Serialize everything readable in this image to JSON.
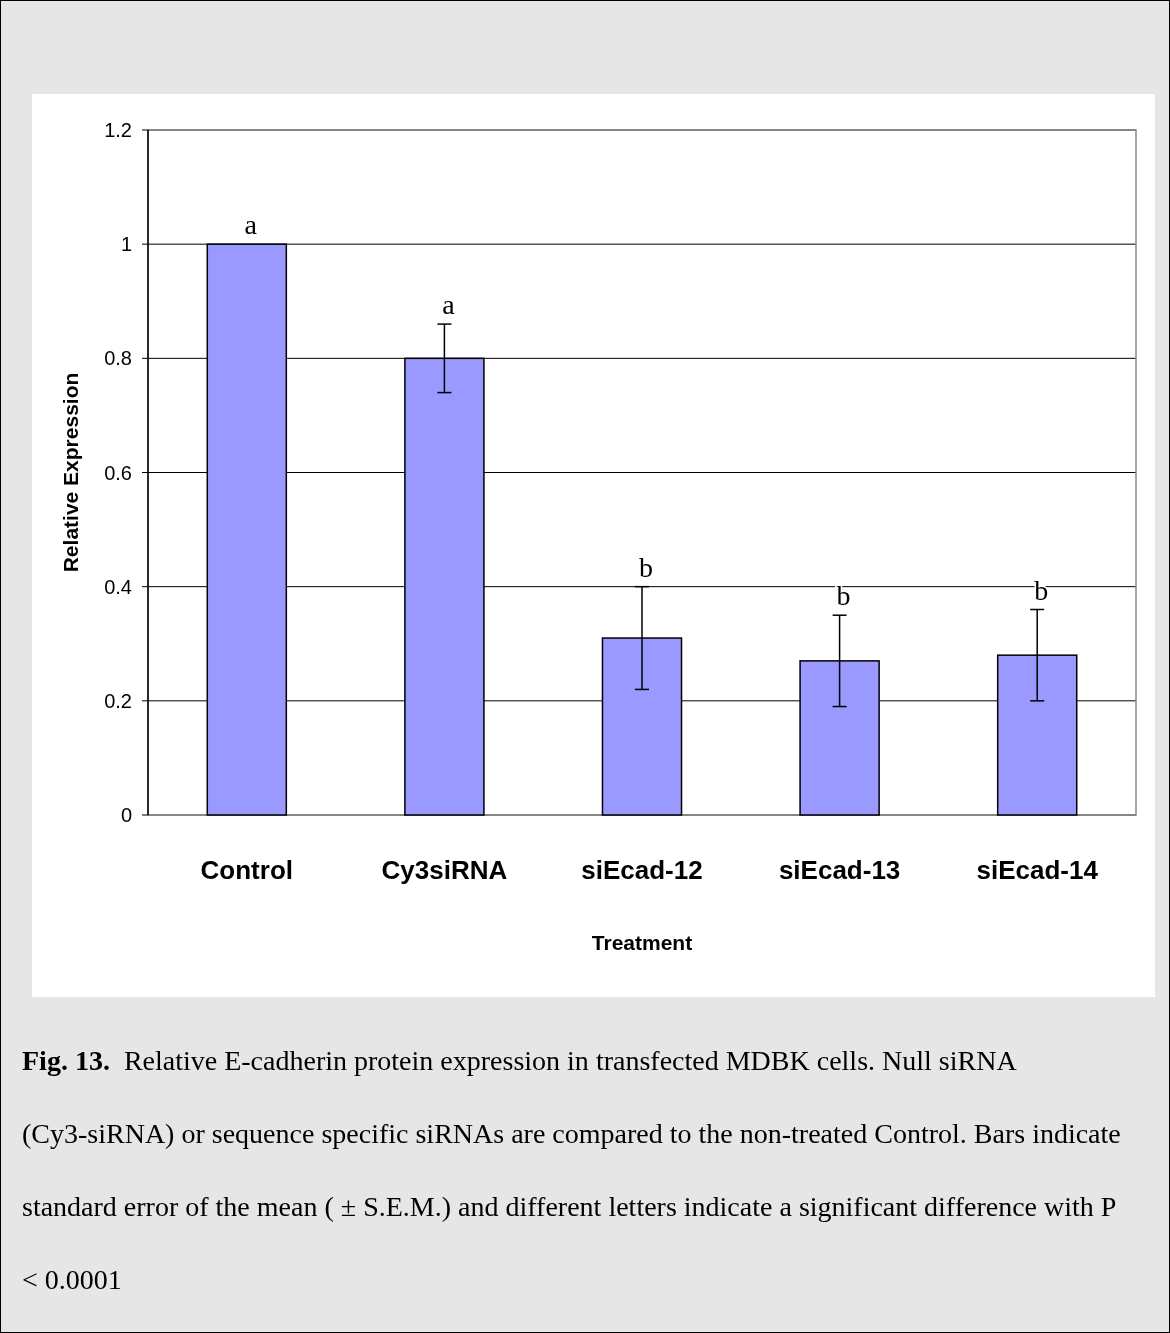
{
  "chart_data": {
    "type": "bar",
    "xlabel": "Treatment",
    "ylabel": "Relative Expression",
    "categories": [
      "Control",
      "Cy3siRNA",
      "siEcad-12",
      "siEcad-13",
      "siEcad-14"
    ],
    "values": [
      1.0,
      0.8,
      0.31,
      0.27,
      0.28
    ],
    "errors": [
      null,
      0.06,
      0.09,
      0.08,
      0.08
    ],
    "color": "#9999ff",
    "ylim": [
      0,
      1.2
    ],
    "yticks": [
      0,
      0.2,
      0.4,
      0.6,
      0.8,
      1,
      1.2
    ],
    "grid": "y",
    "annotations": [
      {
        "text": "a",
        "x": "Control",
        "y": 1.0
      },
      {
        "text": "a",
        "x": "Cy3siRNA",
        "y": 0.86
      },
      {
        "text": "b",
        "x": "siEcad-12",
        "y": 0.4
      },
      {
        "text": "b",
        "x": "siEcad-13",
        "y": 0.35
      },
      {
        "text": "b",
        "x": "siEcad-14",
        "y": 0.36
      },
      "Fig. 13.",
      "Relative E-cadherin protein expression in transfected MDBK cells. Null siRNA (Cy3-siRNA) or sequence specific siRNAs are compared to the non-treated Control. Bars indicate standard error of the mean ( ± S.E.M.) and different letters indicate a significant difference with P < 0.0001"
    ]
  }
}
